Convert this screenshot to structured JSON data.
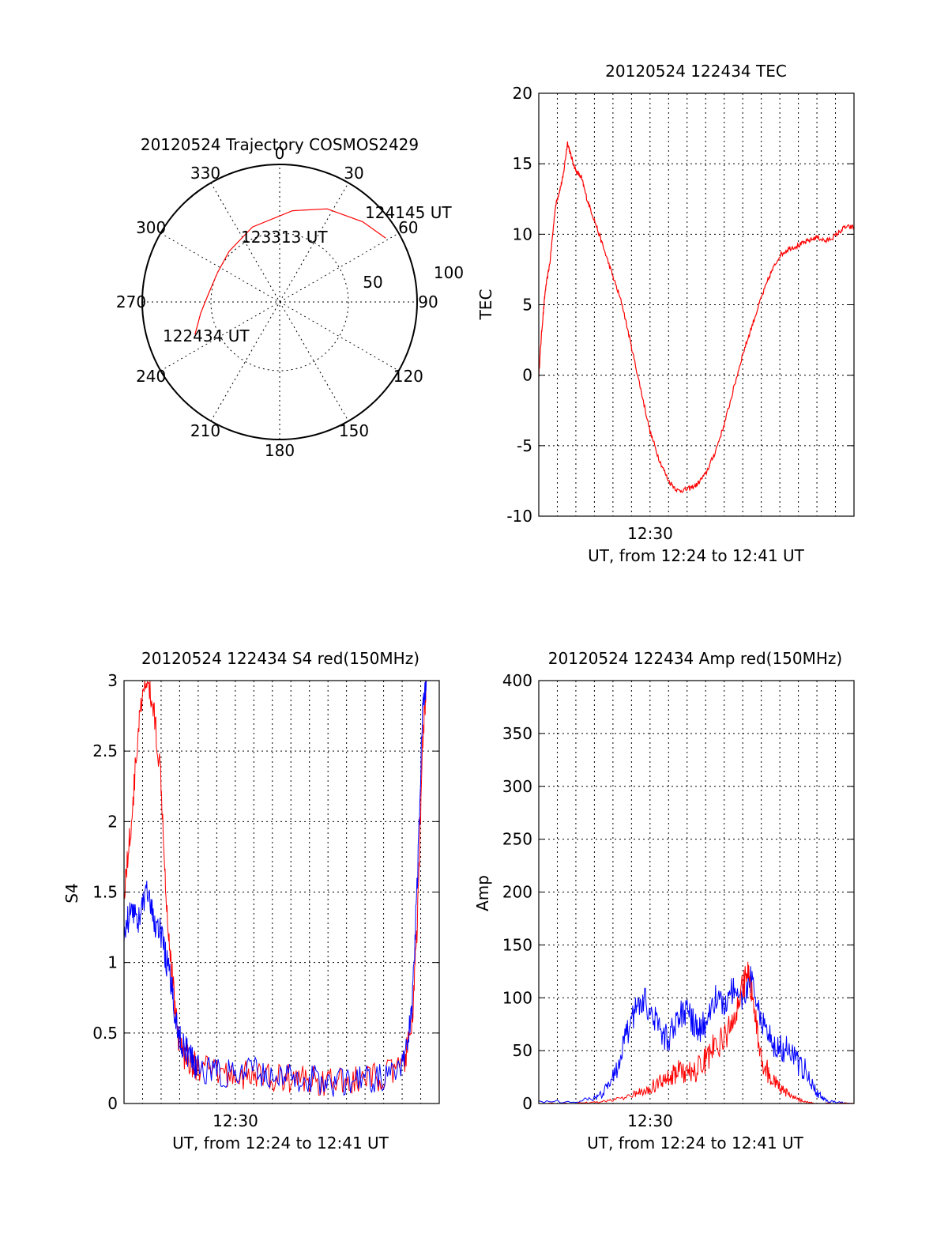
{
  "colors": {
    "red": "#ff0000",
    "blue": "#0000ff",
    "axis": "#000000"
  },
  "chart_data": [
    {
      "type": "polar",
      "title": "20120524 Trajectory COSMOS2429",
      "azimuth_labels": [
        "0",
        "30",
        "60",
        "90",
        "120",
        "150",
        "180",
        "210",
        "240",
        "270",
        "300",
        "330"
      ],
      "radial_labels": [
        "50",
        "100"
      ],
      "trajectory": {
        "color": "red",
        "points": [
          {
            "az": 249,
            "r": 66
          },
          {
            "az": 262,
            "r": 58
          },
          {
            "az": 277,
            "r": 52
          },
          {
            "az": 295,
            "r": 50
          },
          {
            "az": 315,
            "r": 52
          },
          {
            "az": 340,
            "r": 58
          },
          {
            "az": 8,
            "r": 67
          },
          {
            "az": 27,
            "r": 76
          },
          {
            "az": 46,
            "r": 84
          },
          {
            "az": 59,
            "r": 90
          }
        ]
      },
      "annotations": [
        "124145 UT",
        "123313 UT",
        "122434 UT"
      ]
    },
    {
      "type": "line",
      "title": "20120524 122434 TEC",
      "xlabel": "UT, from 12:24 to 12:41 UT",
      "ylabel": "TEC",
      "xlim": [
        0,
        17
      ],
      "ylim": [
        -10,
        20
      ],
      "xtick_label": "12:30",
      "yticks": [
        20,
        15,
        10,
        5,
        0,
        -5,
        -10
      ],
      "series": [
        {
          "color": "red",
          "points": [
            [
              0.0,
              0
            ],
            [
              0.15,
              3
            ],
            [
              0.35,
              6
            ],
            [
              0.6,
              8
            ],
            [
              0.9,
              12
            ],
            [
              1.1,
              13
            ],
            [
              1.3,
              14
            ],
            [
              1.55,
              16.5
            ],
            [
              1.75,
              15.5
            ],
            [
              2.0,
              14.5
            ],
            [
              2.3,
              14
            ],
            [
              2.6,
              12.5
            ],
            [
              3.0,
              11
            ],
            [
              3.5,
              9
            ],
            [
              4.0,
              7
            ],
            [
              4.5,
              5
            ],
            [
              5.0,
              2
            ],
            [
              5.5,
              -1
            ],
            [
              6.0,
              -4
            ],
            [
              6.5,
              -6
            ],
            [
              7.0,
              -7.5
            ],
            [
              7.5,
              -8.2
            ],
            [
              8.0,
              -8.1
            ],
            [
              8.5,
              -7.8
            ],
            [
              9.0,
              -7
            ],
            [
              9.5,
              -5.5
            ],
            [
              10.0,
              -3.5
            ],
            [
              10.5,
              -1
            ],
            [
              11.0,
              1.5
            ],
            [
              11.5,
              3.5
            ],
            [
              12.0,
              5.5
            ],
            [
              12.5,
              7.2
            ],
            [
              13.0,
              8.5
            ],
            [
              13.5,
              9
            ],
            [
              14.0,
              9.2
            ],
            [
              14.5,
              9.5
            ],
            [
              15.0,
              9.8
            ],
            [
              15.5,
              9.5
            ],
            [
              16.0,
              9.9
            ],
            [
              16.5,
              10.5
            ],
            [
              17.0,
              10.5
            ]
          ]
        }
      ]
    },
    {
      "type": "line",
      "title": "20120524 122434 S4 red(150MHz)",
      "xlabel": "UT, from 12:24 to 12:41 UT",
      "ylabel": "S4",
      "xlim": [
        0,
        17
      ],
      "ylim": [
        0,
        3
      ],
      "xtick_label": "12:30",
      "yticks": [
        3,
        2.5,
        2,
        1.5,
        1,
        0.5,
        0
      ],
      "series": [
        {
          "color": "red",
          "points": [
            [
              0.0,
              1.5
            ],
            [
              0.4,
              2.0
            ],
            [
              0.8,
              2.7
            ],
            [
              1.2,
              3.0
            ],
            [
              1.6,
              2.8
            ],
            [
              2.0,
              2.3
            ],
            [
              2.3,
              1.4
            ],
            [
              2.6,
              0.9
            ],
            [
              2.9,
              0.5
            ],
            [
              3.2,
              0.35
            ],
            [
              3.6,
              0.3
            ],
            [
              4.0,
              0.25
            ],
            [
              5.0,
              0.22
            ],
            [
              6.0,
              0.2
            ],
            [
              7.0,
              0.2
            ],
            [
              8.0,
              0.18
            ],
            [
              9.0,
              0.18
            ],
            [
              10.0,
              0.17
            ],
            [
              11.0,
              0.15
            ],
            [
              12.0,
              0.15
            ],
            [
              13.0,
              0.17
            ],
            [
              14.0,
              0.2
            ],
            [
              15.0,
              0.25
            ],
            [
              15.5,
              0.5
            ],
            [
              15.8,
              1.2
            ],
            [
              16.1,
              2.5
            ],
            [
              16.3,
              3.0
            ]
          ]
        },
        {
          "color": "blue",
          "points": [
            [
              0.0,
              1.2
            ],
            [
              0.4,
              1.4
            ],
            [
              0.8,
              1.3
            ],
            [
              1.2,
              1.5
            ],
            [
              1.6,
              1.3
            ],
            [
              2.0,
              1.2
            ],
            [
              2.3,
              1.0
            ],
            [
              2.6,
              0.8
            ],
            [
              2.9,
              0.5
            ],
            [
              3.2,
              0.4
            ],
            [
              3.6,
              0.32
            ],
            [
              4.0,
              0.25
            ],
            [
              5.0,
              0.22
            ],
            [
              6.0,
              0.2
            ],
            [
              7.0,
              0.23
            ],
            [
              8.0,
              0.2
            ],
            [
              9.0,
              0.18
            ],
            [
              10.0,
              0.18
            ],
            [
              11.0,
              0.15
            ],
            [
              12.0,
              0.15
            ],
            [
              13.0,
              0.17
            ],
            [
              14.0,
              0.18
            ],
            [
              15.0,
              0.25
            ],
            [
              15.5,
              0.6
            ],
            [
              15.8,
              1.5
            ],
            [
              16.1,
              2.8
            ],
            [
              16.3,
              3.0
            ]
          ]
        }
      ]
    },
    {
      "type": "line",
      "title": "20120524 122434 Amp red(150MHz)",
      "xlabel": "UT, from 12:24 to 12:41 UT",
      "ylabel": "Amp",
      "xlim": [
        0,
        17
      ],
      "ylim": [
        0,
        400
      ],
      "xtick_label": "12:30",
      "yticks": [
        400,
        350,
        300,
        250,
        200,
        150,
        100,
        50,
        0
      ],
      "series": [
        {
          "color": "red",
          "points": [
            [
              0.0,
              0
            ],
            [
              2.0,
              0
            ],
            [
              3.0,
              1
            ],
            [
              4.0,
              3
            ],
            [
              5.0,
              8
            ],
            [
              5.5,
              12
            ],
            [
              6.0,
              15
            ],
            [
              6.5,
              20
            ],
            [
              7.0,
              25
            ],
            [
              7.5,
              30
            ],
            [
              8.0,
              28
            ],
            [
              8.5,
              32
            ],
            [
              9.0,
              40
            ],
            [
              9.5,
              55
            ],
            [
              10.0,
              60
            ],
            [
              10.5,
              80
            ],
            [
              11.0,
              110
            ],
            [
              11.3,
              125
            ],
            [
              11.6,
              90
            ],
            [
              12.0,
              40
            ],
            [
              12.5,
              25
            ],
            [
              13.0,
              15
            ],
            [
              13.5,
              8
            ],
            [
              14.0,
              4
            ],
            [
              14.5,
              1
            ],
            [
              15.0,
              0
            ],
            [
              17.0,
              0
            ]
          ]
        },
        {
          "color": "blue",
          "points": [
            [
              0.0,
              2
            ],
            [
              2.0,
              2
            ],
            [
              3.0,
              5
            ],
            [
              3.5,
              10
            ],
            [
              4.0,
              25
            ],
            [
              4.5,
              50
            ],
            [
              5.0,
              80
            ],
            [
              5.5,
              100
            ],
            [
              6.0,
              90
            ],
            [
              6.5,
              70
            ],
            [
              7.0,
              60
            ],
            [
              7.5,
              80
            ],
            [
              8.0,
              90
            ],
            [
              8.5,
              70
            ],
            [
              9.0,
              75
            ],
            [
              9.5,
              100
            ],
            [
              10.0,
              95
            ],
            [
              10.5,
              110
            ],
            [
              11.0,
              100
            ],
            [
              11.5,
              120
            ],
            [
              12.0,
              80
            ],
            [
              12.5,
              60
            ],
            [
              13.0,
              55
            ],
            [
              13.5,
              50
            ],
            [
              14.0,
              40
            ],
            [
              14.5,
              30
            ],
            [
              15.0,
              10
            ],
            [
              15.5,
              3
            ],
            [
              16.0,
              1
            ],
            [
              17.0,
              0
            ]
          ]
        }
      ]
    }
  ]
}
